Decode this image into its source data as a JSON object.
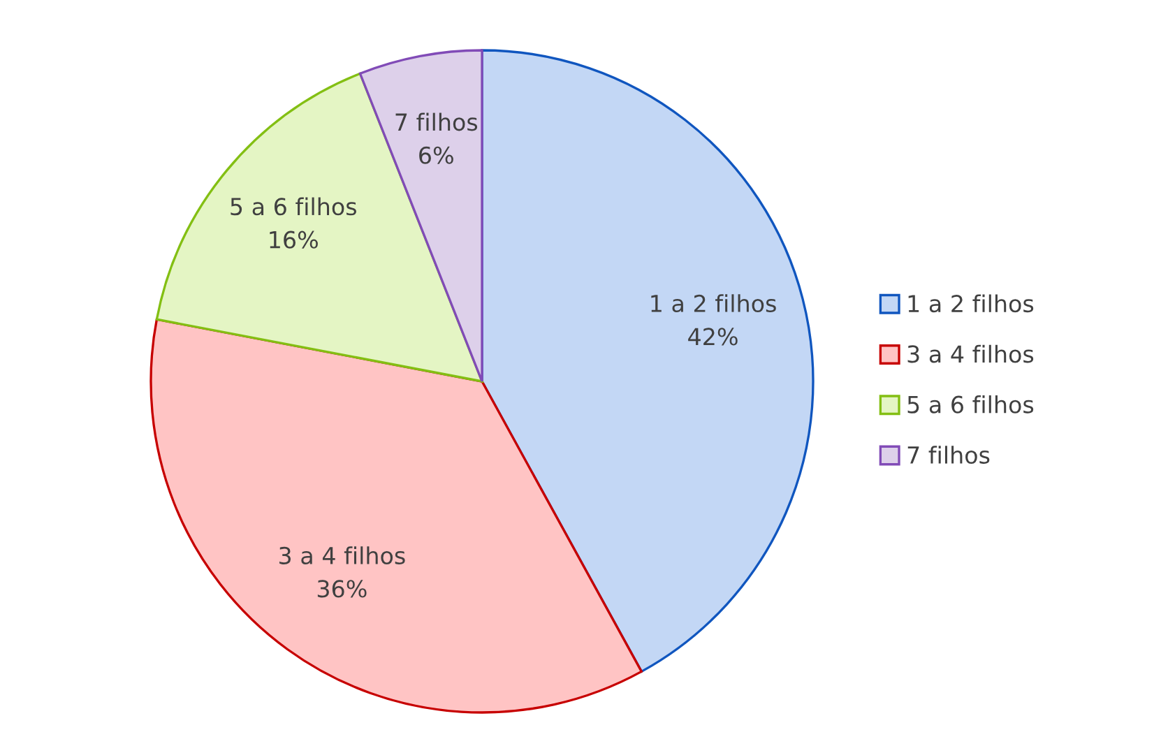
{
  "chart_data": {
    "type": "pie",
    "categories": [
      "1 a 2 filhos",
      "3 a 4 filhos",
      "5 a 6 filhos",
      "7 filhos"
    ],
    "values": [
      42,
      36,
      16,
      6
    ],
    "value_labels": [
      "42%",
      "36%",
      "16%",
      "6%"
    ],
    "colors": [
      "#c3d7f5",
      "#ffc4c4",
      "#e4f5c4",
      "#ddd0ea"
    ],
    "legend": "right"
  }
}
